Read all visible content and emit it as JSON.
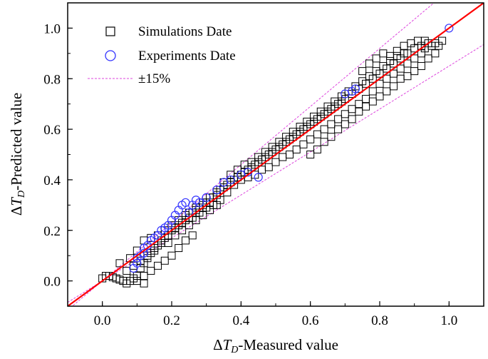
{
  "chart_data": {
    "type": "scatter",
    "title": "",
    "xlabel": {
      "delta": "Δ",
      "var": "T",
      "sub": "D",
      "text": "-Measured value"
    },
    "ylabel": {
      "delta": "Δ",
      "var": "T",
      "sub": "D",
      "text": "-Predicted value"
    },
    "xlim": [
      -0.1,
      1.1
    ],
    "ylim": [
      -0.1,
      1.1
    ],
    "xticks": [
      0.0,
      0.2,
      0.4,
      0.6,
      0.8,
      1.0
    ],
    "yticks": [
      0.0,
      0.2,
      0.4,
      0.6,
      0.8,
      1.0
    ],
    "xtick_labels": [
      "0.0",
      "0.2",
      "0.4",
      "0.6",
      "0.8",
      "1.0"
    ],
    "ytick_labels": [
      "0.0",
      "0.2",
      "0.4",
      "0.6",
      "0.8",
      "1.0"
    ],
    "grid": false,
    "legend_position": "top-left",
    "legend": [
      {
        "label": "Simulations Date",
        "marker": "square",
        "color": "#000000"
      },
      {
        "label": "Experiments Date",
        "marker": "circle",
        "color": "#3333ff"
      },
      {
        "label": "±15%",
        "marker": "dashed-line",
        "color": "#dd44dd"
      }
    ],
    "reference_lines": [
      {
        "name": "y = x",
        "slope": 1.0,
        "color": "#ff0000"
      },
      {
        "name": "+15%",
        "slope": 1.15,
        "color": "#dd44dd",
        "style": "dashed"
      },
      {
        "name": "-15%",
        "slope": 0.85,
        "color": "#dd44dd",
        "style": "dashed"
      }
    ],
    "series": [
      {
        "name": "Simulations Date",
        "marker": "square",
        "color": "#000000",
        "points": [
          [
            0.0,
            0.01
          ],
          [
            0.01,
            0.02
          ],
          [
            0.02,
            0.02
          ],
          [
            0.03,
            0.015
          ],
          [
            0.04,
            0.01
          ],
          [
            0.05,
            0.005
          ],
          [
            0.06,
            0.0
          ],
          [
            0.07,
            -0.01
          ],
          [
            0.08,
            0.0
          ],
          [
            0.09,
            0.01
          ],
          [
            0.1,
            0.02
          ],
          [
            0.11,
            0.05
          ],
          [
            0.12,
            0.07
          ],
          [
            0.13,
            0.09
          ],
          [
            0.14,
            0.11
          ],
          [
            0.15,
            0.12
          ],
          [
            0.16,
            0.14
          ],
          [
            0.17,
            0.15
          ],
          [
            0.18,
            0.17
          ],
          [
            0.19,
            0.18
          ],
          [
            0.2,
            0.2
          ],
          [
            0.21,
            0.21
          ],
          [
            0.22,
            0.22
          ],
          [
            0.23,
            0.23
          ],
          [
            0.24,
            0.24
          ],
          [
            0.25,
            0.25
          ],
          [
            0.26,
            0.27
          ],
          [
            0.27,
            0.28
          ],
          [
            0.28,
            0.29
          ],
          [
            0.29,
            0.3
          ],
          [
            0.3,
            0.31
          ],
          [
            0.31,
            0.31
          ],
          [
            0.32,
            0.33
          ],
          [
            0.33,
            0.34
          ],
          [
            0.34,
            0.36
          ],
          [
            0.35,
            0.37
          ],
          [
            0.36,
            0.38
          ],
          [
            0.37,
            0.39
          ],
          [
            0.38,
            0.4
          ],
          [
            0.39,
            0.41
          ],
          [
            0.4,
            0.42
          ],
          [
            0.41,
            0.43
          ],
          [
            0.42,
            0.44
          ],
          [
            0.43,
            0.45
          ],
          [
            0.44,
            0.46
          ],
          [
            0.45,
            0.47
          ],
          [
            0.46,
            0.48
          ],
          [
            0.47,
            0.49
          ],
          [
            0.48,
            0.5
          ],
          [
            0.49,
            0.51
          ],
          [
            0.5,
            0.52
          ],
          [
            0.51,
            0.53
          ],
          [
            0.52,
            0.54
          ],
          [
            0.53,
            0.55
          ],
          [
            0.54,
            0.56
          ],
          [
            0.55,
            0.57
          ],
          [
            0.56,
            0.58
          ],
          [
            0.57,
            0.59
          ],
          [
            0.58,
            0.6
          ],
          [
            0.59,
            0.61
          ],
          [
            0.6,
            0.62
          ],
          [
            0.61,
            0.63
          ],
          [
            0.62,
            0.64
          ],
          [
            0.63,
            0.65
          ],
          [
            0.64,
            0.66
          ],
          [
            0.65,
            0.67
          ],
          [
            0.66,
            0.68
          ],
          [
            0.67,
            0.69
          ],
          [
            0.68,
            0.7
          ],
          [
            0.69,
            0.71
          ],
          [
            0.7,
            0.72
          ],
          [
            0.72,
            0.74
          ],
          [
            0.74,
            0.76
          ],
          [
            0.76,
            0.78
          ],
          [
            0.78,
            0.8
          ],
          [
            0.8,
            0.82
          ],
          [
            0.82,
            0.84
          ],
          [
            0.84,
            0.86
          ],
          [
            0.86,
            0.88
          ],
          [
            0.88,
            0.9
          ],
          [
            0.9,
            0.92
          ],
          [
            0.92,
            0.93
          ],
          [
            0.94,
            0.94
          ],
          [
            0.95,
            0.93
          ],
          [
            0.05,
            0.07
          ],
          [
            0.08,
            0.09
          ],
          [
            0.1,
            0.12
          ],
          [
            0.12,
            0.16
          ],
          [
            0.14,
            0.17
          ],
          [
            0.16,
            0.18
          ],
          [
            0.18,
            0.2
          ],
          [
            0.2,
            0.22
          ],
          [
            0.22,
            0.24
          ],
          [
            0.24,
            0.26
          ],
          [
            0.26,
            0.25
          ],
          [
            0.28,
            0.27
          ],
          [
            0.3,
            0.29
          ],
          [
            0.32,
            0.3
          ],
          [
            0.34,
            0.32
          ],
          [
            0.36,
            0.35
          ],
          [
            0.38,
            0.38
          ],
          [
            0.4,
            0.4
          ],
          [
            0.42,
            0.41
          ],
          [
            0.44,
            0.42
          ],
          [
            0.46,
            0.44
          ],
          [
            0.48,
            0.45
          ],
          [
            0.5,
            0.47
          ],
          [
            0.52,
            0.49
          ],
          [
            0.54,
            0.5
          ],
          [
            0.56,
            0.52
          ],
          [
            0.58,
            0.54
          ],
          [
            0.6,
            0.56
          ],
          [
            0.62,
            0.58
          ],
          [
            0.64,
            0.6
          ],
          [
            0.66,
            0.62
          ],
          [
            0.68,
            0.64
          ],
          [
            0.7,
            0.66
          ],
          [
            0.72,
            0.68
          ],
          [
            0.74,
            0.7
          ],
          [
            0.76,
            0.72
          ],
          [
            0.78,
            0.75
          ],
          [
            0.8,
            0.78
          ],
          [
            0.82,
            0.8
          ],
          [
            0.84,
            0.82
          ],
          [
            0.86,
            0.84
          ],
          [
            0.88,
            0.86
          ],
          [
            0.9,
            0.88
          ],
          [
            0.92,
            0.9
          ],
          [
            0.93,
            0.92
          ],
          [
            0.25,
            0.27
          ],
          [
            0.27,
            0.29
          ],
          [
            0.29,
            0.31
          ],
          [
            0.31,
            0.33
          ],
          [
            0.33,
            0.35
          ],
          [
            0.35,
            0.39
          ],
          [
            0.37,
            0.42
          ],
          [
            0.39,
            0.44
          ],
          [
            0.41,
            0.46
          ],
          [
            0.43,
            0.47
          ],
          [
            0.45,
            0.49
          ],
          [
            0.47,
            0.51
          ],
          [
            0.49,
            0.53
          ],
          [
            0.51,
            0.55
          ],
          [
            0.53,
            0.57
          ],
          [
            0.55,
            0.59
          ],
          [
            0.57,
            0.61
          ],
          [
            0.59,
            0.63
          ],
          [
            0.61,
            0.65
          ],
          [
            0.63,
            0.67
          ],
          [
            0.65,
            0.69
          ],
          [
            0.67,
            0.71
          ],
          [
            0.69,
            0.73
          ],
          [
            0.71,
            0.75
          ],
          [
            0.73,
            0.77
          ],
          [
            0.75,
            0.79
          ],
          [
            0.77,
            0.81
          ],
          [
            0.79,
            0.83
          ],
          [
            0.81,
            0.85
          ],
          [
            0.83,
            0.87
          ],
          [
            0.85,
            0.89
          ],
          [
            0.87,
            0.9
          ],
          [
            0.1,
            0.0
          ],
          [
            0.12,
            0.02
          ],
          [
            0.14,
            0.04
          ],
          [
            0.16,
            0.06
          ],
          [
            0.18,
            0.08
          ],
          [
            0.2,
            0.1
          ],
          [
            0.22,
            0.13
          ],
          [
            0.24,
            0.16
          ],
          [
            0.26,
            0.18
          ],
          [
            0.12,
            -0.01
          ],
          [
            0.07,
            0.04
          ],
          [
            0.09,
            0.06
          ],
          [
            0.11,
            0.08
          ],
          [
            0.13,
            0.1
          ],
          [
            0.15,
            0.13
          ],
          [
            0.17,
            0.16
          ],
          [
            0.19,
            0.15
          ],
          [
            0.21,
            0.18
          ],
          [
            0.23,
            0.2
          ],
          [
            0.25,
            0.22
          ],
          [
            0.27,
            0.24
          ],
          [
            0.29,
            0.26
          ],
          [
            0.31,
            0.28
          ],
          [
            0.33,
            0.3
          ],
          [
            0.6,
            0.5
          ],
          [
            0.62,
            0.52
          ],
          [
            0.64,
            0.55
          ],
          [
            0.66,
            0.57
          ],
          [
            0.68,
            0.6
          ],
          [
            0.7,
            0.62
          ],
          [
            0.72,
            0.64
          ],
          [
            0.74,
            0.67
          ],
          [
            0.76,
            0.69
          ],
          [
            0.78,
            0.71
          ],
          [
            0.8,
            0.73
          ],
          [
            0.82,
            0.75
          ],
          [
            0.84,
            0.77
          ],
          [
            0.86,
            0.8
          ],
          [
            0.88,
            0.81
          ],
          [
            0.9,
            0.83
          ],
          [
            0.92,
            0.85
          ],
          [
            0.94,
            0.88
          ],
          [
            0.96,
            0.9
          ],
          [
            0.98,
            0.95
          ],
          [
            0.75,
            0.83
          ],
          [
            0.77,
            0.86
          ],
          [
            0.79,
            0.88
          ],
          [
            0.81,
            0.9
          ],
          [
            0.83,
            0.89
          ],
          [
            0.85,
            0.91
          ],
          [
            0.87,
            0.93
          ],
          [
            0.89,
            0.94
          ],
          [
            0.91,
            0.95
          ],
          [
            0.93,
            0.95
          ],
          [
            0.96,
            0.94
          ],
          [
            0.97,
            0.93
          ]
        ]
      },
      {
        "name": "Experiments Date",
        "marker": "circle",
        "color": "#3333ff",
        "points": [
          [
            0.09,
            0.05
          ],
          [
            0.1,
            0.07
          ],
          [
            0.1,
            0.09
          ],
          [
            0.11,
            0.1
          ],
          [
            0.12,
            0.11
          ],
          [
            0.12,
            0.13
          ],
          [
            0.13,
            0.14
          ],
          [
            0.14,
            0.16
          ],
          [
            0.15,
            0.17
          ],
          [
            0.16,
            0.18
          ],
          [
            0.17,
            0.2
          ],
          [
            0.18,
            0.21
          ],
          [
            0.19,
            0.22
          ],
          [
            0.2,
            0.24
          ],
          [
            0.21,
            0.26
          ],
          [
            0.22,
            0.28
          ],
          [
            0.23,
            0.3
          ],
          [
            0.24,
            0.31
          ],
          [
            0.25,
            0.27
          ],
          [
            0.26,
            0.3
          ],
          [
            0.27,
            0.32
          ],
          [
            0.28,
            0.31
          ],
          [
            0.3,
            0.33
          ],
          [
            0.33,
            0.36
          ],
          [
            0.35,
            0.39
          ],
          [
            0.37,
            0.4
          ],
          [
            0.4,
            0.42
          ],
          [
            0.42,
            0.43
          ],
          [
            0.45,
            0.41
          ],
          [
            0.7,
            0.74
          ],
          [
            0.72,
            0.75
          ],
          [
            0.73,
            0.76
          ],
          [
            1.0,
            1.0
          ]
        ]
      }
    ]
  }
}
